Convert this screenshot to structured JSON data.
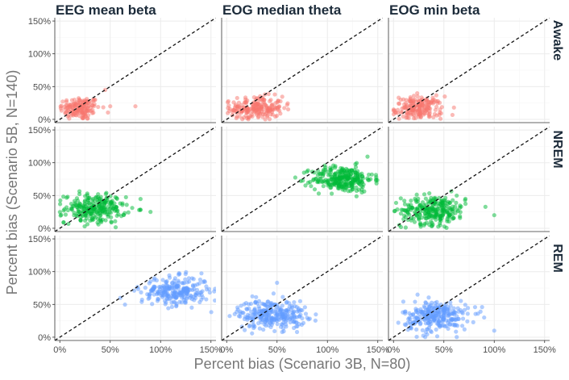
{
  "chart_data": {
    "type": "scatter",
    "xlabel": "Percent bias (Scenario 3B, N=80)",
    "ylabel": "Percent bias (Scenario 5B, N=140)",
    "columns": [
      "EEG mean beta",
      "EOG median theta",
      "EOG min beta"
    ],
    "rows": [
      "Awake",
      "NREM",
      "REM"
    ],
    "xlim": [
      -5,
      155
    ],
    "ylim": [
      -5,
      155
    ],
    "x_ticks": [
      0,
      50,
      100,
      150
    ],
    "y_ticks": [
      0,
      50,
      100,
      150
    ],
    "x_tick_labels": [
      "0%",
      "50%",
      "100%",
      "150%"
    ],
    "y_tick_labels": [
      "0%",
      "50%",
      "100%",
      "150%"
    ],
    "reference_line": "y = x (dashed)",
    "grid": true,
    "row_colors": {
      "Awake": "#f8766d",
      "NREM": "#00ba38",
      "REM": "#619cff"
    },
    "clusters": [
      {
        "row": "Awake",
        "col": "EEG mean beta",
        "center": [
          20,
          17
        ],
        "spread": [
          10,
          9
        ],
        "n": 150,
        "outliers": [
          [
            75,
            20
          ],
          [
            50,
            20
          ],
          [
            45,
            45
          ]
        ]
      },
      {
        "row": "Awake",
        "col": "EOG median theta",
        "center": [
          30,
          17
        ],
        "spread": [
          13,
          9
        ],
        "n": 200,
        "outliers": [
          [
            60,
            22
          ]
        ]
      },
      {
        "row": "Awake",
        "col": "EOG min beta",
        "center": [
          25,
          17
        ],
        "spread": [
          12,
          9
        ],
        "n": 180,
        "outliers": [
          [
            60,
            18
          ]
        ]
      },
      {
        "row": "NREM",
        "col": "EEG mean beta",
        "center": [
          35,
          30
        ],
        "spread": [
          15,
          11
        ],
        "n": 250,
        "outliers": [
          [
            90,
            25
          ],
          [
            80,
            28
          ]
        ]
      },
      {
        "row": "NREM",
        "col": "EOG median theta",
        "center": [
          115,
          75
        ],
        "spread": [
          15,
          10
        ],
        "n": 280,
        "outliers": []
      },
      {
        "row": "NREM",
        "col": "EOG min beta",
        "center": [
          40,
          28
        ],
        "spread": [
          16,
          11
        ],
        "n": 260,
        "outliers": [
          [
            100,
            20
          ]
        ]
      },
      {
        "row": "REM",
        "col": "EEG mean beta",
        "center": [
          115,
          70
        ],
        "spread": [
          17,
          11
        ],
        "n": 250,
        "outliers": [
          [
            60,
            60
          ]
        ]
      },
      {
        "row": "REM",
        "col": "EOG median theta",
        "center": [
          45,
          35
        ],
        "spread": [
          17,
          11
        ],
        "n": 280,
        "outliers": [
          [
            50,
            83
          ]
        ]
      },
      {
        "row": "REM",
        "col": "EOG min beta",
        "center": [
          42,
          32
        ],
        "spread": [
          16,
          12
        ],
        "n": 270,
        "outliers": [
          [
            90,
            30
          ],
          [
            100,
            10
          ]
        ]
      }
    ]
  }
}
